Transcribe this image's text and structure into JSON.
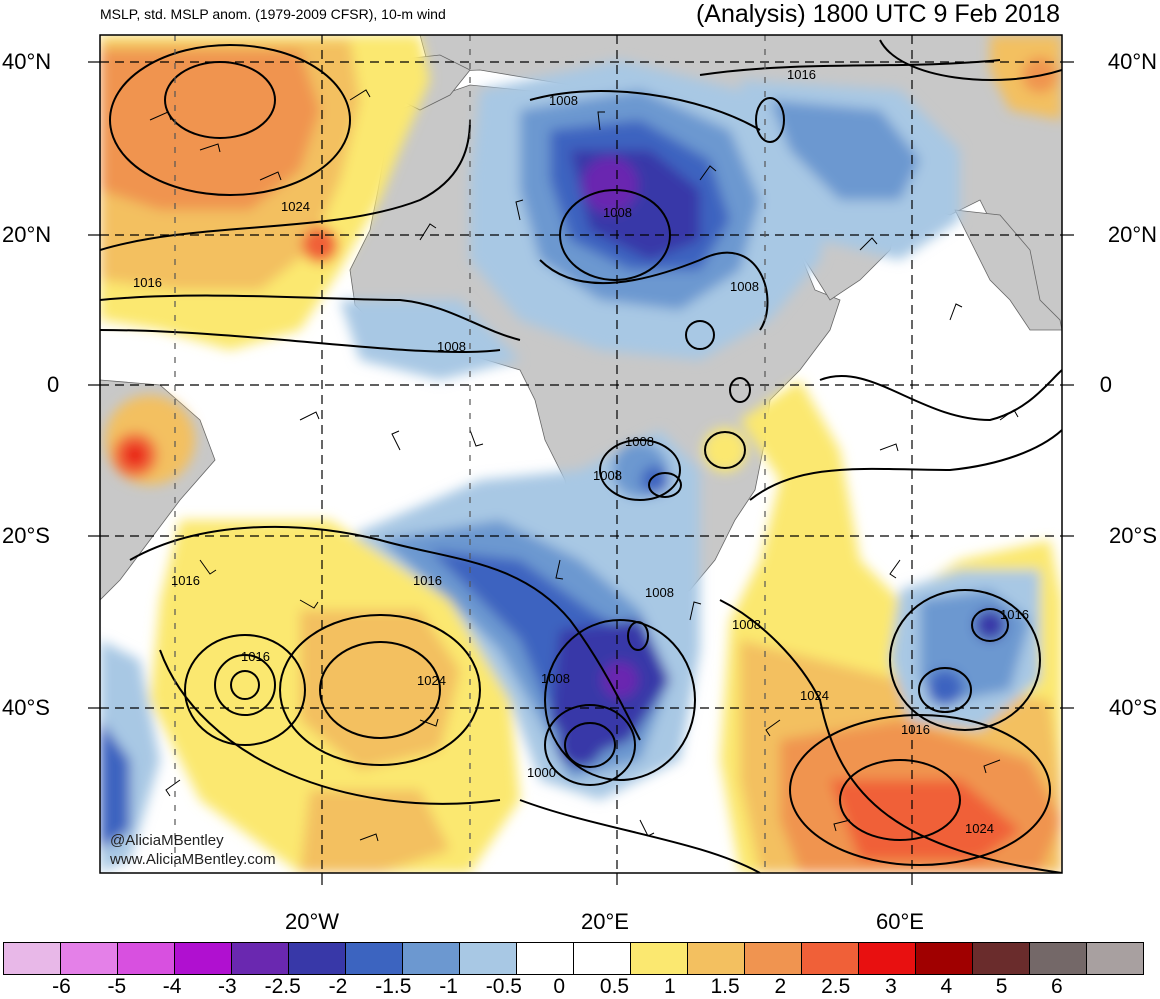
{
  "header": {
    "title_left": "MSLP, std. MSLP anom. (1979-2009 CFSR), 10-m wind",
    "title_right": "(Analysis) 1800 UTC 9 Feb 2018"
  },
  "map": {
    "lat_labels": [
      "40°N",
      "20°N",
      "0",
      "20°S",
      "40°S"
    ],
    "lon_labels": [
      "20°W",
      "20°E",
      "60°E"
    ],
    "isobar_labels": [
      "1016",
      "1008",
      "1024",
      "1016",
      "1008",
      "1008",
      "1008",
      "1008",
      "1008",
      "1008",
      "1016",
      "1016",
      "1008",
      "1016",
      "1024",
      "1008",
      "1000",
      "1016",
      "1024",
      "1016",
      "1024"
    ],
    "credit_line1": "@AliciaMBentley",
    "credit_line2": "www.AliciaMBentley.com",
    "colors": {
      "land": "#c8c8c8",
      "ocean": "#ffffff",
      "contour": "#000000"
    }
  },
  "colorbar": {
    "colors": [
      "#e8b8e8",
      "#e480e8",
      "#d850e0",
      "#b010d0",
      "#6a28b0",
      "#3838a8",
      "#3c64c0",
      "#6c98d0",
      "#a8c8e4",
      "#ffffff",
      "#ffffff",
      "#fbe870",
      "#f3c060",
      "#f09450",
      "#f06038",
      "#e81010",
      "#a00000",
      "#6a2c2c",
      "#746868",
      "#a8a0a0"
    ],
    "labels": [
      "-6",
      "-5",
      "-4",
      "-3",
      "-2.5",
      "-2",
      "-1.5",
      "-1",
      "-0.5",
      "0",
      "0.5",
      "1",
      "1.5",
      "2",
      "2.5",
      "3",
      "4",
      "5",
      "6"
    ]
  }
}
